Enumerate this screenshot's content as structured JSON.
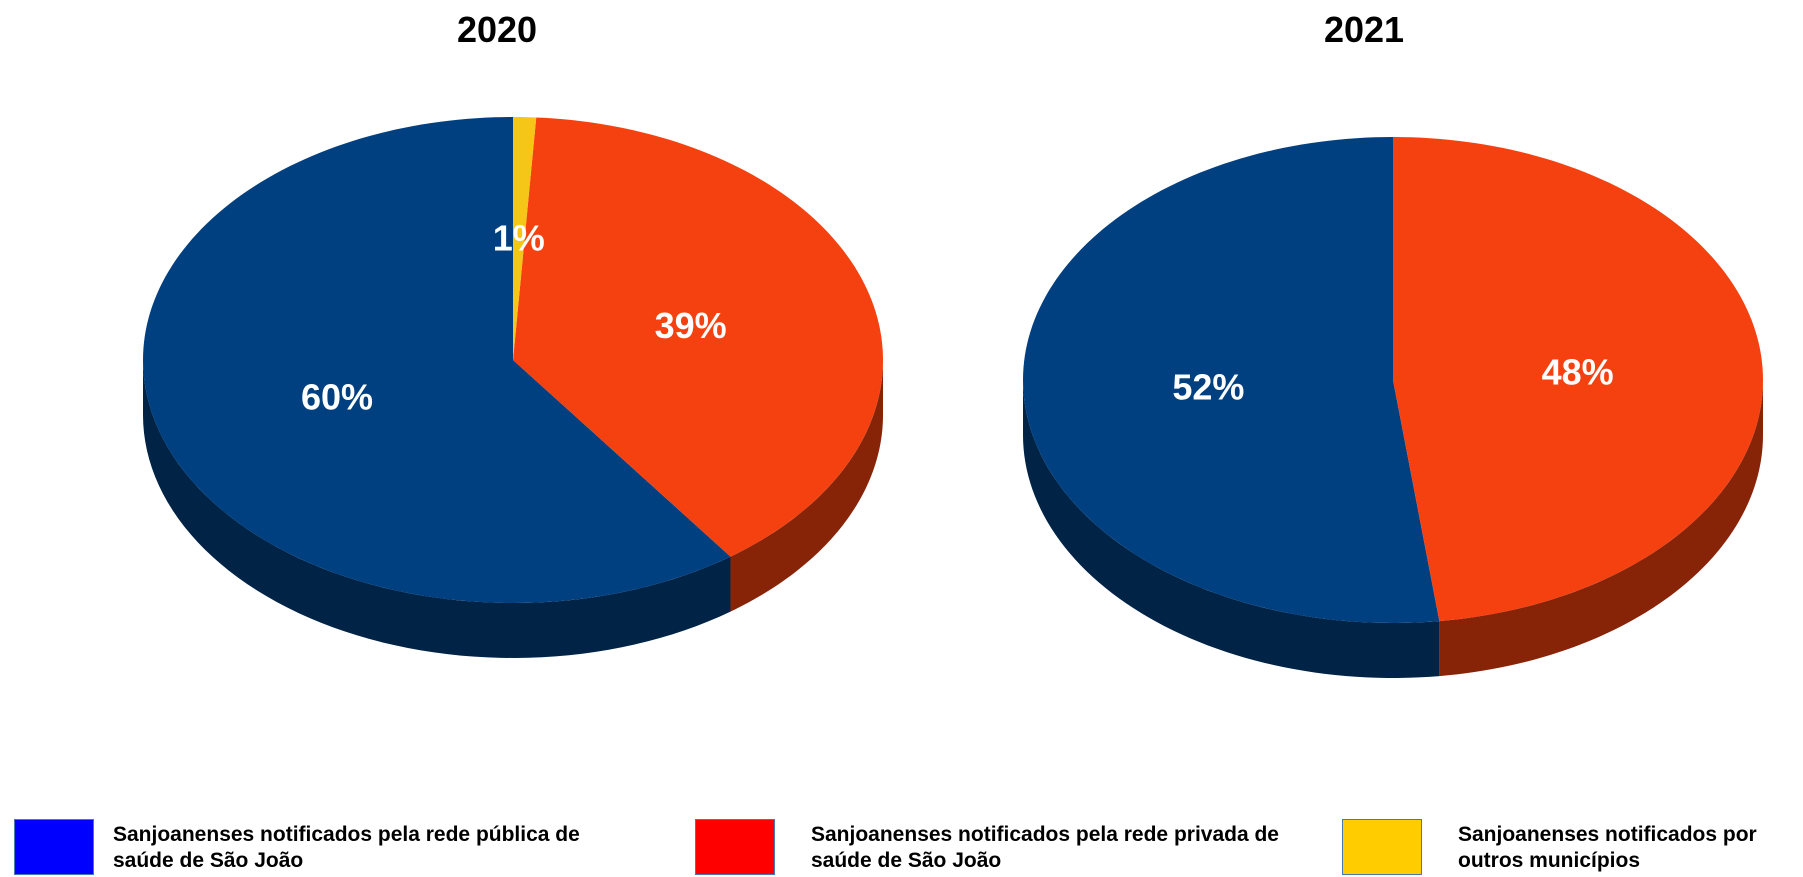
{
  "chart_data": [
    {
      "type": "pie",
      "title": "2020",
      "values": [
        60,
        39,
        1
      ],
      "value_labels": [
        "60%",
        "39%",
        "1%"
      ],
      "colors": [
        "#004080",
        "#f5410f",
        "#f5c518"
      ]
    },
    {
      "type": "pie",
      "title": "2021",
      "values": [
        52,
        48
      ],
      "value_labels": [
        "52%",
        "48%"
      ],
      "colors": [
        "#004080",
        "#f5410f"
      ]
    }
  ],
  "legend": {
    "labels": [
      "Sanjoanenses notificados pela rede pública de saúde de São João",
      "Sanjoanenses notificados pela rede privada de saúde de São João",
      "Sanjoanenses notificados por outros municípios"
    ],
    "colors": [
      "#0000ff",
      "#ff0000",
      "#ffcc00"
    ]
  }
}
